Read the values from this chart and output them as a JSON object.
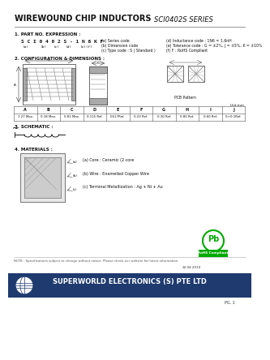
{
  "bg_color": "#ffffff",
  "title_left": "WIREWOUND CHIP INDUCTORS",
  "title_right": "SCI0402S SERIES",
  "section1_title": "1. PART NO. EXPRESSION :",
  "part_number": "S C I 0 4 0 2 S - 1 N 6 K F",
  "part_labels_a": "(a)",
  "part_labels_b": "(b)",
  "part_labels_c": "(c)",
  "part_labels_d": "(d)",
  "part_labels_e": "(e)(f)",
  "desc_a": "(a) Series code",
  "desc_b": "(b) Dimension code",
  "desc_c": "(c) Type code : S ( Standard )",
  "desc_d": "(d) Inductance code : 1N6 = 1.6nH",
  "desc_e": "(e) Tolerance code : G = ±2%, J = ±5%, K = ±10%",
  "desc_f": "(f) F : RoHS Compliant",
  "section2_title": "2. CONFIGURATION & DIMENSIONS :",
  "pcb_label": "PCB Pattern",
  "unit_label": "Unit:mm",
  "dim_headers": [
    "A",
    "B",
    "C",
    "D",
    "E",
    "F",
    "G",
    "H",
    "I",
    "J"
  ],
  "dim_values": [
    "1.27 Max.",
    "0.18 Max.",
    "0.81 Max.",
    "0.115 Ref.",
    "0.517Ref.",
    "0.23 Ref.",
    "0.30 Ref.",
    "0.80 Ref.",
    "0.60 Ref.",
    "0.+0.1Ref."
  ],
  "section3_title": "3. SCHEMATIC :",
  "section4_title": "4. MATERIALS :",
  "mat_a": "(a) Core : Ceramic (2 core",
  "mat_b": "(b) Wire : Enamelled Copper Wire",
  "mat_c": "(c) Terminal Metallization : Ag + Ni + Au",
  "rohs_text1": "Pb",
  "rohs_text2": "RoHS Compliant",
  "footer_note": "NOTE : Specifications subject to change without notice. Please check our website for latest information.",
  "footer_date": "22.04.2010",
  "footer_page": "PG. 1",
  "footer_company": "SUPERWORLD ELECTRONICS (S) PTE LTD",
  "header_line_color": "#888888",
  "table_border_color": "#555555",
  "blue_banner_color": "#1e3a6e",
  "rohs_green": "#00aa00"
}
